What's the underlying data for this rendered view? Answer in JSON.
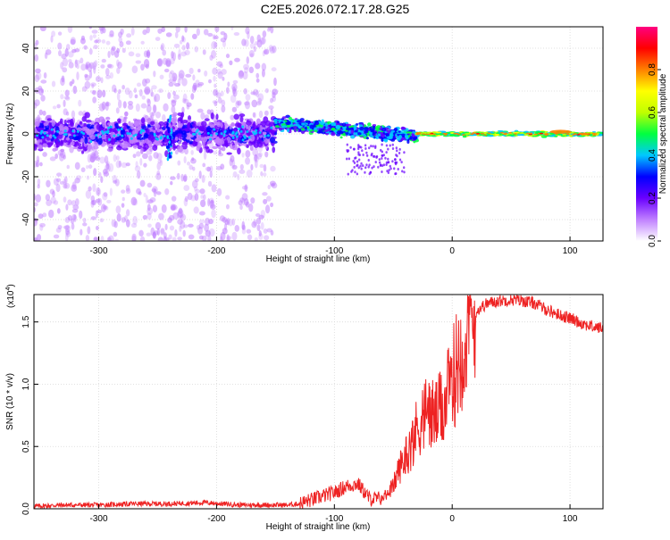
{
  "figure": {
    "title": "C2E5.2026.072.17.28.G25"
  },
  "chart_data": [
    {
      "type": "heatmap",
      "xlabel": "Height of straight line (km)",
      "ylabel": "Frequency (Hz)",
      "xlim": [
        -355,
        128
      ],
      "ylim": [
        -50,
        50
      ],
      "x_ticks": [
        -300,
        -200,
        -100,
        0,
        100
      ],
      "y_ticks": [
        -40,
        -20,
        0,
        20,
        40
      ],
      "colorbar": {
        "label": "Normalized spectral amplitude",
        "range": [
          0,
          1
        ],
        "ticks": [
          "0.0",
          "0.2",
          "0.4",
          "0.6",
          "0.8"
        ],
        "tick_values": [
          0.0,
          0.2,
          0.4,
          0.6,
          0.8
        ],
        "colors": [
          "#ffffff",
          "#c080ff",
          "#6a00ff",
          "#0000ff",
          "#00c8ff",
          "#00ff40",
          "#c0ff00",
          "#ffff00",
          "#ff8000",
          "#ff0000",
          "#ff0080"
        ]
      },
      "grid": true
    },
    {
      "type": "line",
      "xlabel": "Height of straight line (km)",
      "ylabel": "SNR (10 * v/v)",
      "y_multiplier": "(x10",
      "y_multiplier_exp": "4",
      "y_multiplier_close": ")",
      "xlim": [
        -355,
        128
      ],
      "ylim": [
        0,
        1.72
      ],
      "x_ticks": [
        -300,
        -200,
        -100,
        0,
        100
      ],
      "y_ticks": [
        0.0,
        0.5,
        1.0,
        1.5
      ],
      "y_tick_labels": [
        "0.0",
        "0.5",
        "1.0",
        "1.5"
      ],
      "series_color": "#ee2222",
      "series": [
        {
          "x": [
            -355,
            -330,
            -300,
            -270,
            -240,
            -210,
            -180,
            -160,
            -140,
            -130,
            -120,
            -110,
            -100,
            -90,
            -80,
            -70,
            -60,
            -50,
            -45,
            -40,
            -35,
            -30,
            -25,
            -20,
            -15,
            -10,
            -5,
            0,
            5,
            10,
            15,
            20,
            25,
            30,
            40,
            50,
            60,
            70,
            80,
            90,
            100,
            110,
            120,
            128
          ],
          "y": [
            0.02,
            0.03,
            0.03,
            0.04,
            0.04,
            0.05,
            0.03,
            0.03,
            0.03,
            0.04,
            0.07,
            0.1,
            0.13,
            0.18,
            0.2,
            0.08,
            0.08,
            0.2,
            0.35,
            0.45,
            0.55,
            0.7,
            0.8,
            0.85,
            0.8,
            0.85,
            0.95,
            1.1,
            1.3,
            1.45,
            1.55,
            1.58,
            1.62,
            1.65,
            1.67,
            1.68,
            1.67,
            1.65,
            1.6,
            1.56,
            1.53,
            1.49,
            1.46,
            1.45
          ]
        }
      ]
    }
  ]
}
